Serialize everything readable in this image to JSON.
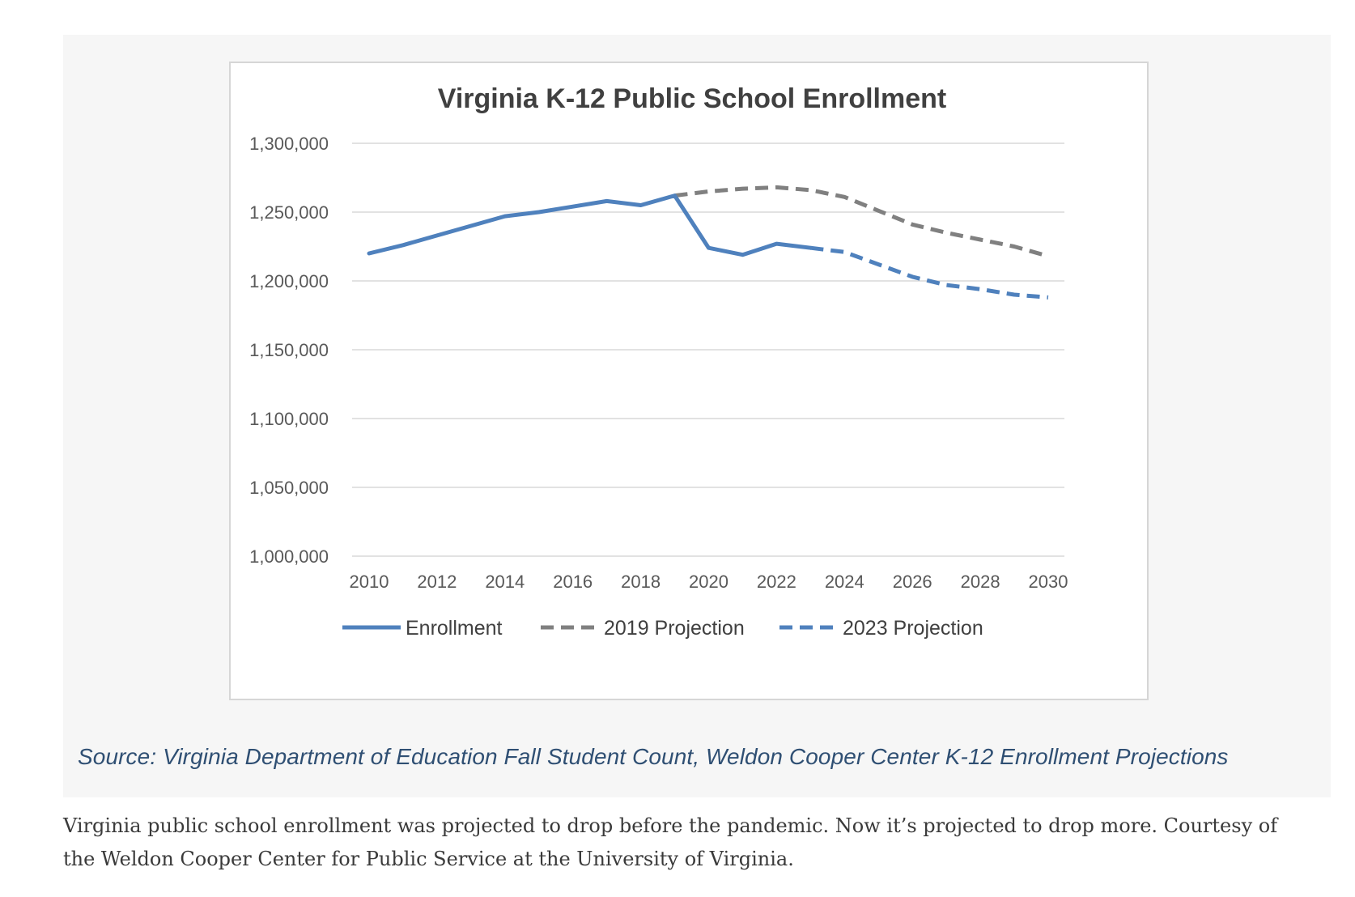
{
  "chart_data": {
    "type": "line",
    "title": "Virginia K-12 Public School Enrollment",
    "xlabel": "",
    "ylabel": "",
    "xlim": [
      2010,
      2030
    ],
    "ylim": [
      1000000,
      1300000
    ],
    "x_ticks": [
      2010,
      2012,
      2014,
      2016,
      2018,
      2020,
      2022,
      2024,
      2026,
      2028,
      2030
    ],
    "y_ticks": [
      1000000,
      1050000,
      1100000,
      1150000,
      1200000,
      1250000,
      1300000
    ],
    "y_tick_labels": [
      "1,000,000",
      "1,050,000",
      "1,100,000",
      "1,150,000",
      "1,200,000",
      "1,250,000",
      "1,300,000"
    ],
    "grid": "horizontal",
    "legend_position": "bottom",
    "series": [
      {
        "name": "Enrollment",
        "style": "solid",
        "color": "#4f81bd",
        "x": [
          2010,
          2011,
          2012,
          2013,
          2014,
          2015,
          2016,
          2017,
          2018,
          2019,
          2020,
          2021,
          2022,
          2023
        ],
        "y": [
          1220000,
          1226000,
          1233000,
          1240000,
          1247000,
          1250000,
          1254000,
          1258000,
          1255000,
          1262000,
          1224000,
          1219000,
          1227000,
          1224000
        ]
      },
      {
        "name": "2019 Projection",
        "style": "dashed",
        "color": "#808080",
        "x": [
          2019,
          2020,
          2021,
          2022,
          2023,
          2024,
          2025,
          2026,
          2027,
          2028,
          2029,
          2030
        ],
        "y": [
          1262000,
          1265000,
          1267000,
          1268000,
          1266000,
          1261000,
          1251000,
          1241000,
          1235000,
          1230000,
          1225000,
          1218000
        ]
      },
      {
        "name": "2023 Projection",
        "style": "dashed",
        "color": "#4f81bd",
        "x": [
          2023,
          2024,
          2025,
          2026,
          2027,
          2028,
          2029,
          2030
        ],
        "y": [
          1224000,
          1221000,
          1212000,
          1203000,
          1197000,
          1194000,
          1190000,
          1188000
        ]
      }
    ]
  },
  "source": "Source: Virginia Department of Education Fall Student Count, Weldon Cooper Center K-12 Enrollment Projections",
  "caption": "Virginia public school enrollment was projected to drop before the pandemic. Now it’s projected to drop more. Courtesy of the Weldon Cooper Center for Public Service at the University of Virginia."
}
